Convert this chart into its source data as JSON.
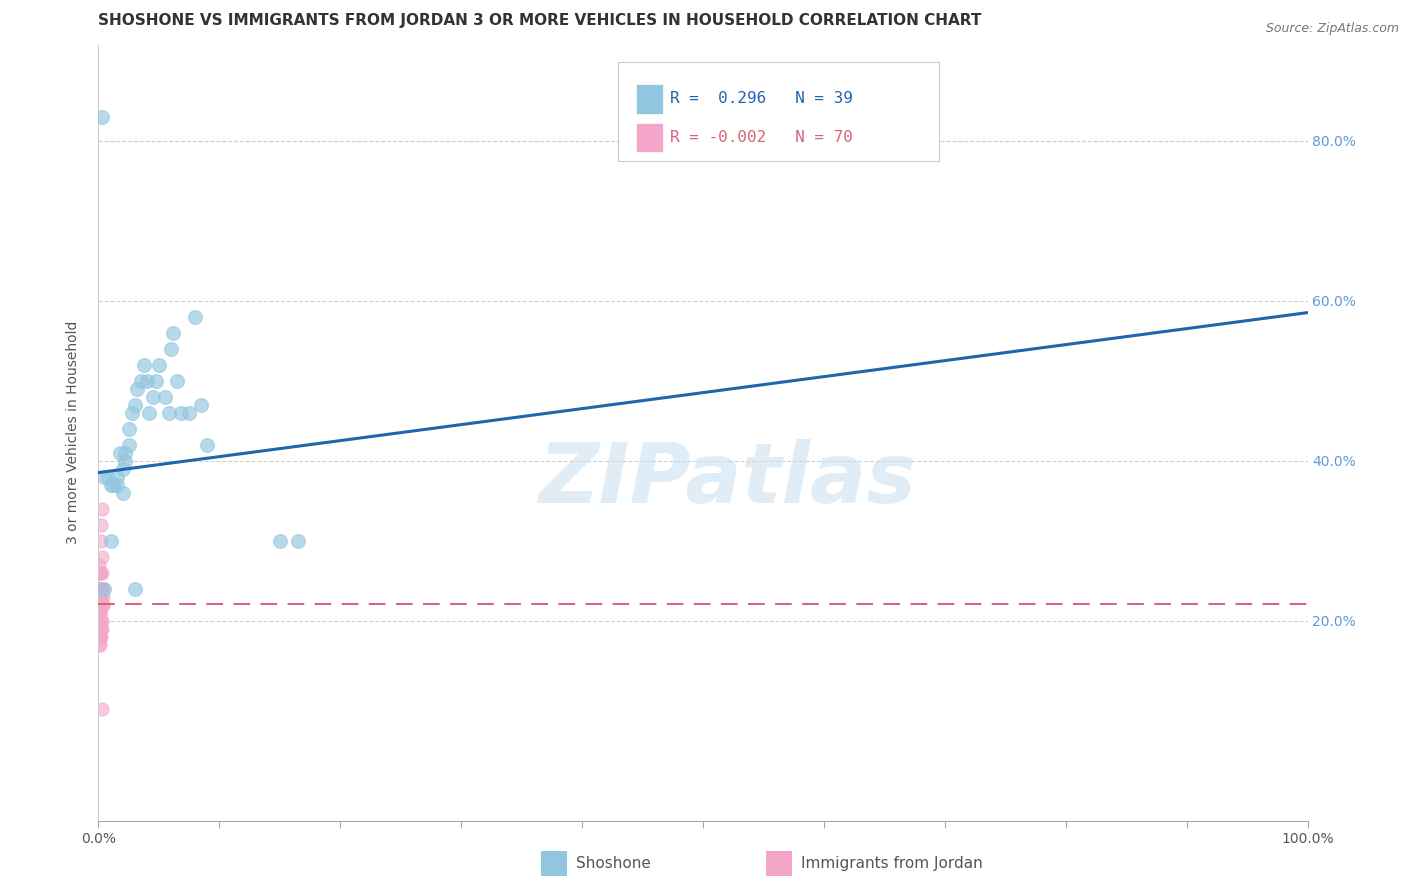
{
  "title": "SHOSHONE VS IMMIGRANTS FROM JORDAN 3 OR MORE VEHICLES IN HOUSEHOLD CORRELATION CHART",
  "source": "Source: ZipAtlas.com",
  "ylabel": "3 or more Vehicles in Household",
  "xlim": [
    0,
    1.0
  ],
  "ylim": [
    -0.05,
    0.92
  ],
  "xticks": [
    0.0,
    0.1,
    0.2,
    0.3,
    0.4,
    0.5,
    0.6,
    0.7,
    0.8,
    0.9,
    1.0
  ],
  "xtick_labels": [
    "0.0%",
    "",
    "",
    "",
    "",
    "",
    "",
    "",
    "",
    "",
    "100.0%"
  ],
  "ytick_positions": [
    0.2,
    0.4,
    0.6,
    0.8
  ],
  "right_ytick_labels": [
    "20.0%",
    "40.0%",
    "60.0%",
    "80.0%"
  ],
  "shoshone_color": "#92c5de",
  "jordan_color": "#f4a6c8",
  "trend_blue": "#2166ac",
  "trend_pink": "#d9657a",
  "watermark_color": "#c8dff0",
  "legend_R_blue": "0.296",
  "legend_N_blue": "39",
  "legend_R_pink": "-0.002",
  "legend_N_pink": "70",
  "shoshone_x": [
    0.005,
    0.008,
    0.01,
    0.012,
    0.015,
    0.015,
    0.018,
    0.02,
    0.022,
    0.022,
    0.025,
    0.025,
    0.028,
    0.03,
    0.032,
    0.035,
    0.038,
    0.04,
    0.042,
    0.045,
    0.048,
    0.05,
    0.055,
    0.058,
    0.06,
    0.062,
    0.065,
    0.068,
    0.075,
    0.08,
    0.085,
    0.09,
    0.005,
    0.01,
    0.02,
    0.03,
    0.15,
    0.165,
    0.003
  ],
  "shoshone_y": [
    0.38,
    0.38,
    0.37,
    0.37,
    0.38,
    0.37,
    0.41,
    0.39,
    0.4,
    0.41,
    0.42,
    0.44,
    0.46,
    0.47,
    0.49,
    0.5,
    0.52,
    0.5,
    0.46,
    0.48,
    0.5,
    0.52,
    0.48,
    0.46,
    0.54,
    0.56,
    0.5,
    0.46,
    0.46,
    0.58,
    0.47,
    0.42,
    0.24,
    0.3,
    0.36,
    0.24,
    0.3,
    0.3,
    0.83
  ],
  "jordan_x": [
    0.0002,
    0.0003,
    0.0005,
    0.0005,
    0.0006,
    0.0006,
    0.0007,
    0.0007,
    0.0007,
    0.0008,
    0.0008,
    0.0008,
    0.0009,
    0.0009,
    0.0009,
    0.001,
    0.001,
    0.001,
    0.001,
    0.0011,
    0.0011,
    0.0011,
    0.0011,
    0.0012,
    0.0012,
    0.0012,
    0.0012,
    0.0013,
    0.0013,
    0.0014,
    0.0014,
    0.0015,
    0.0015,
    0.0016,
    0.0017,
    0.0018,
    0.0019,
    0.002,
    0.0022,
    0.0024,
    0.0026,
    0.0028,
    0.003,
    0.0032,
    0.0035,
    0.0038,
    0.004,
    0.0042,
    0.0005,
    0.0005,
    0.0006,
    0.0007,
    0.0008,
    0.0009,
    0.001,
    0.0011,
    0.0012,
    0.0013,
    0.0014,
    0.0016,
    0.0018,
    0.002,
    0.0022,
    0.0026,
    0.003,
    0.0007,
    0.0009,
    0.0011,
    0.0016,
    0.0026
  ],
  "jordan_y": [
    0.24,
    0.23,
    0.24,
    0.22,
    0.24,
    0.23,
    0.24,
    0.22,
    0.23,
    0.24,
    0.23,
    0.22,
    0.24,
    0.23,
    0.22,
    0.24,
    0.23,
    0.22,
    0.21,
    0.24,
    0.23,
    0.22,
    0.21,
    0.24,
    0.23,
    0.22,
    0.21,
    0.24,
    0.23,
    0.24,
    0.22,
    0.24,
    0.22,
    0.23,
    0.24,
    0.23,
    0.22,
    0.24,
    0.3,
    0.32,
    0.28,
    0.26,
    0.34,
    0.24,
    0.22,
    0.24,
    0.23,
    0.22,
    0.19,
    0.18,
    0.17,
    0.2,
    0.19,
    0.18,
    0.19,
    0.2,
    0.18,
    0.17,
    0.19,
    0.18,
    0.19,
    0.2,
    0.18,
    0.2,
    0.19,
    0.27,
    0.26,
    0.26,
    0.26,
    0.09
  ],
  "grid_color": "#d0d0d0",
  "background_color": "#ffffff",
  "title_fontsize": 11,
  "axis_label_fontsize": 10,
  "tick_fontsize": 10,
  "blue_trend_start_y": 0.385,
  "blue_trend_end_y": 0.585,
  "pink_trend_y": 0.221
}
